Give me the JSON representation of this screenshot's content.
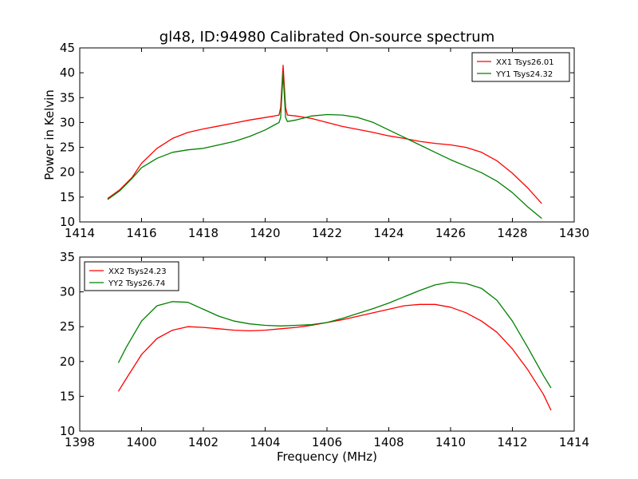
{
  "figure": {
    "title": "gl48, ID:94980 Calibrated On-source spectrum",
    "ylabel": "Power in Kelvin",
    "xlabel": "Frequency (MHz)"
  },
  "colors": {
    "XX": "#ff0000",
    "YY": "#008000"
  },
  "chart_data": [
    {
      "type": "line",
      "xlim": [
        1414,
        1430
      ],
      "ylim": [
        10,
        45
      ],
      "xticks": [
        1414,
        1416,
        1418,
        1420,
        1422,
        1424,
        1426,
        1428,
        1430
      ],
      "yticks": [
        10,
        15,
        20,
        25,
        30,
        35,
        40,
        45
      ],
      "legend_position": "top-right",
      "series": [
        {
          "name": "XX1 Tsys26.01",
          "color": "#ff0000",
          "points": [
            [
              1414.9,
              14.7
            ],
            [
              1415.3,
              16.5
            ],
            [
              1415.7,
              19.0
            ],
            [
              1416.0,
              21.8
            ],
            [
              1416.5,
              24.8
            ],
            [
              1417.0,
              26.8
            ],
            [
              1417.5,
              28.0
            ],
            [
              1418.0,
              28.7
            ],
            [
              1418.5,
              29.3
            ],
            [
              1419.0,
              29.9
            ],
            [
              1419.5,
              30.5
            ],
            [
              1420.0,
              31.0
            ],
            [
              1420.3,
              31.3
            ],
            [
              1420.45,
              31.5
            ],
            [
              1420.5,
              33.0
            ],
            [
              1420.58,
              41.5
            ],
            [
              1420.66,
              33.0
            ],
            [
              1420.72,
              31.5
            ],
            [
              1421.0,
              31.3
            ],
            [
              1421.5,
              30.8
            ],
            [
              1422.0,
              30.0
            ],
            [
              1422.5,
              29.2
            ],
            [
              1423.0,
              28.6
            ],
            [
              1423.5,
              28.0
            ],
            [
              1424.0,
              27.3
            ],
            [
              1424.5,
              26.8
            ],
            [
              1425.0,
              26.2
            ],
            [
              1425.5,
              25.8
            ],
            [
              1426.0,
              25.5
            ],
            [
              1426.5,
              25.0
            ],
            [
              1427.0,
              24.0
            ],
            [
              1427.5,
              22.3
            ],
            [
              1428.0,
              19.8
            ],
            [
              1428.5,
              16.8
            ],
            [
              1428.95,
              13.7
            ]
          ]
        },
        {
          "name": "YY1 Tsys24.32",
          "color": "#008000",
          "points": [
            [
              1414.9,
              14.5
            ],
            [
              1415.3,
              16.3
            ],
            [
              1415.7,
              18.8
            ],
            [
              1416.0,
              20.9
            ],
            [
              1416.5,
              22.8
            ],
            [
              1417.0,
              24.0
            ],
            [
              1417.5,
              24.5
            ],
            [
              1418.0,
              24.8
            ],
            [
              1418.5,
              25.5
            ],
            [
              1419.0,
              26.2
            ],
            [
              1419.5,
              27.2
            ],
            [
              1420.0,
              28.5
            ],
            [
              1420.3,
              29.5
            ],
            [
              1420.45,
              30.0
            ],
            [
              1420.5,
              31.0
            ],
            [
              1420.58,
              40.0
            ],
            [
              1420.66,
              31.0
            ],
            [
              1420.72,
              30.2
            ],
            [
              1421.0,
              30.5
            ],
            [
              1421.5,
              31.3
            ],
            [
              1422.0,
              31.6
            ],
            [
              1422.5,
              31.5
            ],
            [
              1423.0,
              31.0
            ],
            [
              1423.5,
              30.0
            ],
            [
              1424.0,
              28.5
            ],
            [
              1424.5,
              27.0
            ],
            [
              1425.0,
              25.5
            ],
            [
              1425.5,
              24.0
            ],
            [
              1426.0,
              22.5
            ],
            [
              1426.5,
              21.2
            ],
            [
              1427.0,
              19.9
            ],
            [
              1427.5,
              18.2
            ],
            [
              1428.0,
              15.9
            ],
            [
              1428.5,
              13.0
            ],
            [
              1428.95,
              10.7
            ]
          ]
        }
      ]
    },
    {
      "type": "line",
      "xlim": [
        1398,
        1414
      ],
      "ylim": [
        10,
        35
      ],
      "xticks": [
        1398,
        1400,
        1402,
        1404,
        1406,
        1408,
        1410,
        1412,
        1414
      ],
      "yticks": [
        10,
        15,
        20,
        25,
        30,
        35
      ],
      "legend_position": "top-left",
      "series": [
        {
          "name": "XX2 Tsys24.23",
          "color": "#ff0000",
          "points": [
            [
              1399.25,
              15.7
            ],
            [
              1399.5,
              17.5
            ],
            [
              1400.0,
              21.0
            ],
            [
              1400.5,
              23.3
            ],
            [
              1401.0,
              24.5
            ],
            [
              1401.5,
              25.0
            ],
            [
              1402.0,
              24.9
            ],
            [
              1402.5,
              24.7
            ],
            [
              1403.0,
              24.5
            ],
            [
              1403.5,
              24.4
            ],
            [
              1404.0,
              24.5
            ],
            [
              1404.5,
              24.7
            ],
            [
              1405.0,
              24.9
            ],
            [
              1405.5,
              25.2
            ],
            [
              1406.0,
              25.6
            ],
            [
              1406.5,
              26.0
            ],
            [
              1407.0,
              26.5
            ],
            [
              1407.5,
              27.0
            ],
            [
              1408.0,
              27.5
            ],
            [
              1408.5,
              28.0
            ],
            [
              1409.0,
              28.2
            ],
            [
              1409.5,
              28.2
            ],
            [
              1410.0,
              27.8
            ],
            [
              1410.5,
              27.0
            ],
            [
              1411.0,
              25.8
            ],
            [
              1411.5,
              24.2
            ],
            [
              1412.0,
              21.8
            ],
            [
              1412.5,
              18.8
            ],
            [
              1413.0,
              15.3
            ],
            [
              1413.25,
              13.0
            ]
          ]
        },
        {
          "name": "YY2 Tsys26.74",
          "color": "#008000",
          "points": [
            [
              1399.25,
              19.8
            ],
            [
              1399.5,
              22.0
            ],
            [
              1400.0,
              25.8
            ],
            [
              1400.5,
              28.0
            ],
            [
              1401.0,
              28.6
            ],
            [
              1401.5,
              28.5
            ],
            [
              1402.0,
              27.5
            ],
            [
              1402.5,
              26.5
            ],
            [
              1403.0,
              25.8
            ],
            [
              1403.5,
              25.4
            ],
            [
              1404.0,
              25.2
            ],
            [
              1404.5,
              25.1
            ],
            [
              1405.0,
              25.2
            ],
            [
              1405.5,
              25.3
            ],
            [
              1406.0,
              25.6
            ],
            [
              1406.5,
              26.2
            ],
            [
              1407.0,
              26.9
            ],
            [
              1407.5,
              27.6
            ],
            [
              1408.0,
              28.4
            ],
            [
              1408.5,
              29.3
            ],
            [
              1409.0,
              30.2
            ],
            [
              1409.5,
              31.0
            ],
            [
              1410.0,
              31.4
            ],
            [
              1410.5,
              31.2
            ],
            [
              1411.0,
              30.5
            ],
            [
              1411.5,
              28.8
            ],
            [
              1412.0,
              25.8
            ],
            [
              1412.5,
              22.0
            ],
            [
              1413.0,
              18.0
            ],
            [
              1413.25,
              16.2
            ]
          ]
        }
      ]
    }
  ]
}
